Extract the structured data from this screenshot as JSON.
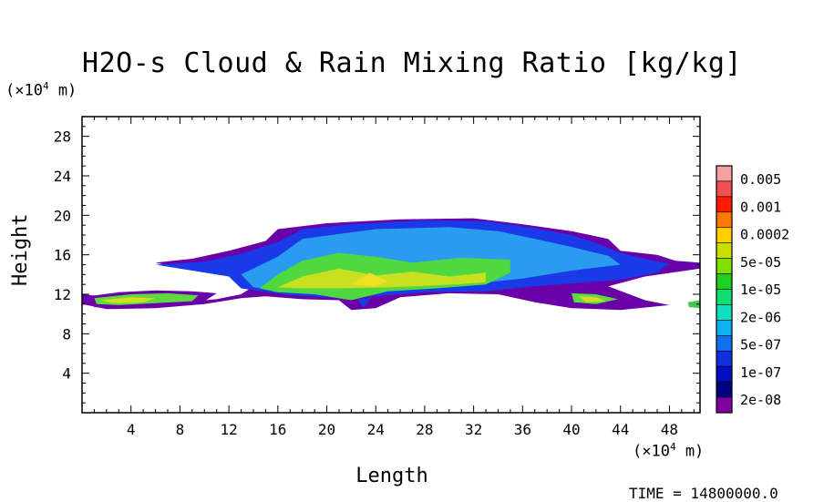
{
  "chart_data": {
    "type": "heatmap",
    "title": "H2O-s Cloud & Rain Mixing Ratio [kg/kg]",
    "xlabel": "Length",
    "ylabel": "Height",
    "x_unit_prefix": "(×10",
    "x_unit_exp": "4",
    "x_unit_suffix": " m)",
    "y_unit_prefix": "(×10",
    "y_unit_exp": "4",
    "y_unit_suffix": " m)",
    "xlim": [
      0,
      50.5
    ],
    "ylim": [
      0,
      30
    ],
    "x_ticks": [
      4,
      8,
      12,
      16,
      20,
      24,
      28,
      32,
      36,
      40,
      44,
      48
    ],
    "y_ticks": [
      4,
      8,
      12,
      16,
      20,
      24,
      28
    ],
    "colorbar": {
      "labels": [
        "0.005",
        "0.001",
        "0.0002",
        "5e-05",
        "1e-05",
        "2e-06",
        "5e-07",
        "1e-07",
        "2e-08"
      ],
      "colors": [
        "#f7a0a0",
        "#f05050",
        "#ff1a00",
        "#ff7a00",
        "#ffd000",
        "#c8e000",
        "#80e000",
        "#20d020",
        "#10e070",
        "#10e0c0",
        "#10b0f0",
        "#1070f0",
        "#1030e0",
        "#0010c0",
        "#000080",
        "#8000a0"
      ]
    },
    "regions": [
      {
        "name": "cloud-outer",
        "level": "2e-08",
        "color": "#6a00a8",
        "points": [
          [
            0,
            12
          ],
          [
            3,
            11.6
          ],
          [
            8,
            11.2
          ],
          [
            11,
            11.5
          ],
          [
            13,
            12
          ],
          [
            14.5,
            13.2
          ],
          [
            12,
            14.2
          ],
          [
            8,
            14.6
          ],
          [
            6,
            15.2
          ],
          [
            9,
            15.6
          ],
          [
            12,
            16.4
          ],
          [
            15,
            17.4
          ],
          [
            16,
            18.6
          ],
          [
            20,
            19.2
          ],
          [
            26,
            19.6
          ],
          [
            32,
            19.7
          ],
          [
            36,
            19.1
          ],
          [
            40,
            18.4
          ],
          [
            43,
            17.6
          ],
          [
            44,
            16.4
          ],
          [
            47,
            16
          ],
          [
            48.5,
            15.4
          ],
          [
            50.5,
            15.2
          ],
          [
            50.5,
            14.6
          ],
          [
            46,
            13.8
          ],
          [
            43,
            12.8
          ],
          [
            46,
            11.4
          ],
          [
            48,
            10.9
          ],
          [
            44,
            10.4
          ],
          [
            40,
            10.6
          ],
          [
            37,
            11.2
          ],
          [
            34,
            12
          ],
          [
            30,
            12.1
          ],
          [
            26,
            11.7
          ],
          [
            24,
            10.6
          ],
          [
            22,
            10.4
          ],
          [
            21,
            11.4
          ],
          [
            18,
            11.5
          ],
          [
            15,
            11.8
          ],
          [
            13,
            11.6
          ],
          [
            10,
            11
          ],
          [
            6,
            10.6
          ],
          [
            2,
            10.5
          ],
          [
            0,
            11
          ]
        ]
      },
      {
        "name": "cloud-blue",
        "level": "1e-07",
        "color": "#1a3ae8",
        "points": [
          [
            6,
            15
          ],
          [
            10,
            15.3
          ],
          [
            13,
            16.1
          ],
          [
            16,
            17.3
          ],
          [
            18,
            18.6
          ],
          [
            22,
            19.1
          ],
          [
            28,
            19.5
          ],
          [
            33,
            19.4
          ],
          [
            37,
            18.7
          ],
          [
            40,
            18
          ],
          [
            42,
            17.2
          ],
          [
            44,
            16.2
          ],
          [
            46,
            15.6
          ],
          [
            48,
            15.1
          ],
          [
            47,
            14.2
          ],
          [
            44,
            13.5
          ],
          [
            40,
            13.1
          ],
          [
            37,
            12.8
          ],
          [
            33,
            12.3
          ],
          [
            28,
            12.2
          ],
          [
            24,
            11.8
          ],
          [
            21,
            11.6
          ],
          [
            17,
            11.9
          ],
          [
            13,
            12.6
          ],
          [
            12,
            13.8
          ],
          [
            9,
            14.4
          ]
        ]
      },
      {
        "name": "cloud-cyan",
        "level": "5e-07",
        "color": "#2a9cf0",
        "points": [
          [
            13,
            14
          ],
          [
            16,
            15.8
          ],
          [
            18,
            17.6
          ],
          [
            24,
            18.6
          ],
          [
            30,
            18.8
          ],
          [
            34,
            18.4
          ],
          [
            37,
            17.6
          ],
          [
            40,
            16.8
          ],
          [
            43,
            15.9
          ],
          [
            44,
            15
          ],
          [
            40,
            14.4
          ],
          [
            36,
            13.6
          ],
          [
            30,
            12.8
          ],
          [
            24,
            12.3
          ],
          [
            18,
            12.2
          ],
          [
            14,
            12.7
          ]
        ]
      },
      {
        "name": "cloud-green",
        "level": "1e-05",
        "color": "#50d840",
        "points": [
          [
            14.5,
            12.6
          ],
          [
            16,
            14
          ],
          [
            18,
            15.4
          ],
          [
            21,
            16.2
          ],
          [
            24,
            15.8
          ],
          [
            27,
            15.2
          ],
          [
            31,
            15.7
          ],
          [
            35,
            15.5
          ],
          [
            35,
            14.2
          ],
          [
            33,
            13
          ],
          [
            29,
            12.6
          ],
          [
            25,
            12.3
          ],
          [
            22,
            11.4
          ],
          [
            19,
            12
          ],
          [
            16,
            12.2
          ]
        ]
      },
      {
        "name": "cloud-yellow",
        "level": "5e-05",
        "color": "#c8e020",
        "points": [
          [
            16,
            12.7
          ],
          [
            18,
            13.8
          ],
          [
            21,
            14.6
          ],
          [
            24,
            13.9
          ],
          [
            27,
            14.3
          ],
          [
            30,
            13.8
          ],
          [
            33,
            14.2
          ],
          [
            33,
            13.2
          ],
          [
            29,
            12.9
          ],
          [
            25,
            12.7
          ],
          [
            21,
            12.6
          ],
          [
            18,
            12.6
          ]
        ]
      },
      {
        "name": "cloud-core",
        "level": "0.0002",
        "color": "#f0e020",
        "points": [
          [
            22,
            13
          ],
          [
            23.5,
            14.2
          ],
          [
            25,
            13.3
          ],
          [
            24,
            12.8
          ]
        ]
      },
      {
        "name": "left-layer-outer",
        "level": "2e-08",
        "color": "#6a00a8",
        "points": [
          [
            0.5,
            11.8
          ],
          [
            3,
            12.2
          ],
          [
            6,
            12.4
          ],
          [
            9,
            12.3
          ],
          [
            11,
            12.1
          ],
          [
            10,
            11.3
          ],
          [
            7,
            10.9
          ],
          [
            3,
            10.6
          ],
          [
            1,
            10.7
          ]
        ]
      },
      {
        "name": "left-layer-green",
        "level": "1e-05",
        "color": "#60d840",
        "points": [
          [
            1,
            11.6
          ],
          [
            4,
            12
          ],
          [
            7,
            12.1
          ],
          [
            9.5,
            11.9
          ],
          [
            9,
            11.3
          ],
          [
            6,
            11.1
          ],
          [
            3,
            10.9
          ],
          [
            1.2,
            11
          ]
        ]
      },
      {
        "name": "left-layer-yellow",
        "level": "5e-05",
        "color": "#d0e020",
        "points": [
          [
            1.5,
            11.4
          ],
          [
            4,
            11.7
          ],
          [
            6,
            11.6
          ],
          [
            5,
            11.2
          ],
          [
            2.5,
            11.1
          ]
        ]
      },
      {
        "name": "right-layer-outer",
        "level": "2e-08",
        "color": "#6a00a8",
        "points": [
          [
            39.5,
            12.4
          ],
          [
            42,
            12.3
          ],
          [
            44,
            11.7
          ],
          [
            46,
            11.2
          ],
          [
            43,
            10.6
          ],
          [
            40,
            10.9
          ]
        ]
      },
      {
        "name": "right-layer-green",
        "level": "1e-05",
        "color": "#60d840",
        "points": [
          [
            40,
            12.1
          ],
          [
            42,
            12
          ],
          [
            43.8,
            11.5
          ],
          [
            42,
            11
          ],
          [
            40.2,
            11.2
          ]
        ]
      },
      {
        "name": "right-layer-yellow",
        "level": "5e-05",
        "color": "#d0e020",
        "points": [
          [
            40.6,
            11.8
          ],
          [
            42,
            11.7
          ],
          [
            42.8,
            11.3
          ],
          [
            41.2,
            11.2
          ]
        ]
      },
      {
        "name": "far-right-fragment",
        "level": "1e-05",
        "color": "#40c850",
        "points": [
          [
            49.5,
            11.2
          ],
          [
            50.5,
            11.4
          ],
          [
            50.5,
            10.6
          ],
          [
            49.6,
            10.7
          ]
        ]
      },
      {
        "name": "center-dip",
        "level": "1e-07",
        "color": "#1a3ae8",
        "points": [
          [
            22.5,
            11.5
          ],
          [
            23,
            10.6
          ],
          [
            23.6,
            11.6
          ]
        ]
      }
    ]
  },
  "time_label": "TIME = 14800000.0"
}
